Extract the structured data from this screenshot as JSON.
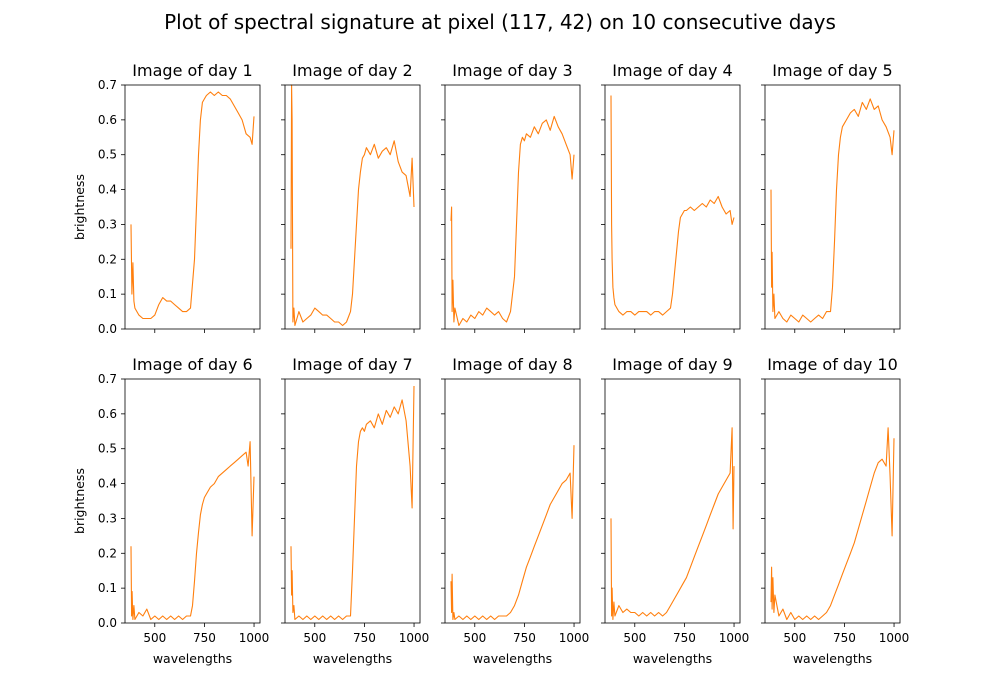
{
  "figure_title": "Plot of spectral signature at pixel (117, 42) on 10 consecutive days",
  "shared_x_label": "wavelengths",
  "shared_y_label": "brightness",
  "line_color": "#ff7f0e",
  "x_ticks": [
    "500",
    "750",
    "1000"
  ],
  "y_ticks": [
    "0.0",
    "0.1",
    "0.2",
    "0.3",
    "0.4",
    "0.5",
    "0.6",
    "0.7"
  ],
  "chart_data": [
    {
      "type": "line",
      "title": "Image of day 1",
      "xlabel": "",
      "ylabel": "brightness",
      "xlim": [
        350,
        1030
      ],
      "ylim": [
        0,
        0.7
      ],
      "series": [
        {
          "x": [
            380,
            385,
            390,
            395,
            400,
            420,
            440,
            460,
            480,
            500,
            520,
            540,
            560,
            580,
            600,
            620,
            640,
            660,
            680,
            700,
            710,
            720,
            730,
            740,
            750,
            760,
            780,
            800,
            820,
            840,
            860,
            880,
            900,
            920,
            940,
            960,
            980,
            990,
            1000
          ],
          "y": [
            0.3,
            0.1,
            0.19,
            0.08,
            0.06,
            0.04,
            0.03,
            0.03,
            0.03,
            0.04,
            0.07,
            0.09,
            0.08,
            0.08,
            0.07,
            0.06,
            0.05,
            0.05,
            0.06,
            0.2,
            0.35,
            0.5,
            0.6,
            0.65,
            0.66,
            0.67,
            0.68,
            0.67,
            0.68,
            0.67,
            0.67,
            0.66,
            0.64,
            0.62,
            0.6,
            0.56,
            0.55,
            0.53,
            0.61
          ]
        }
      ]
    },
    {
      "type": "line",
      "title": "Image of day 2",
      "xlabel": "",
      "ylabel": "",
      "xlim": [
        350,
        1030
      ],
      "ylim": [
        0,
        0.7
      ],
      "series": [
        {
          "x": [
            380,
            383,
            386,
            390,
            395,
            400,
            420,
            440,
            460,
            480,
            500,
            520,
            540,
            560,
            580,
            600,
            620,
            640,
            660,
            680,
            690,
            700,
            710,
            720,
            730,
            740,
            750,
            760,
            780,
            800,
            820,
            840,
            860,
            880,
            900,
            920,
            940,
            960,
            980,
            990,
            1000
          ],
          "y": [
            0.23,
            0.7,
            0.6,
            0.02,
            0.06,
            0.01,
            0.05,
            0.02,
            0.03,
            0.04,
            0.06,
            0.05,
            0.04,
            0.04,
            0.03,
            0.02,
            0.02,
            0.01,
            0.02,
            0.05,
            0.1,
            0.2,
            0.3,
            0.4,
            0.45,
            0.49,
            0.5,
            0.52,
            0.5,
            0.53,
            0.49,
            0.51,
            0.52,
            0.5,
            0.54,
            0.48,
            0.45,
            0.44,
            0.38,
            0.49,
            0.35
          ]
        }
      ]
    },
    {
      "type": "line",
      "title": "Image of day 3",
      "xlabel": "",
      "ylabel": "",
      "xlim": [
        350,
        1030
      ],
      "ylim": [
        0,
        0.7
      ],
      "series": [
        {
          "x": [
            380,
            383,
            386,
            390,
            395,
            400,
            420,
            440,
            460,
            480,
            500,
            520,
            540,
            560,
            580,
            600,
            620,
            640,
            660,
            680,
            700,
            710,
            720,
            730,
            740,
            750,
            760,
            780,
            800,
            820,
            840,
            860,
            880,
            900,
            920,
            940,
            960,
            980,
            990,
            1000
          ],
          "y": [
            0.31,
            0.35,
            0.05,
            0.14,
            0.02,
            0.06,
            0.01,
            0.03,
            0.02,
            0.04,
            0.03,
            0.05,
            0.04,
            0.06,
            0.05,
            0.04,
            0.05,
            0.03,
            0.02,
            0.05,
            0.15,
            0.3,
            0.45,
            0.53,
            0.55,
            0.54,
            0.56,
            0.55,
            0.58,
            0.56,
            0.59,
            0.6,
            0.57,
            0.61,
            0.58,
            0.56,
            0.53,
            0.5,
            0.43,
            0.5
          ]
        }
      ]
    },
    {
      "type": "line",
      "title": "Image of day 4",
      "xlabel": "",
      "ylabel": "",
      "xlim": [
        350,
        1030
      ],
      "ylim": [
        0,
        0.7
      ],
      "series": [
        {
          "x": [
            380,
            383,
            386,
            390,
            395,
            400,
            420,
            440,
            460,
            480,
            500,
            520,
            540,
            560,
            580,
            600,
            620,
            640,
            660,
            680,
            690,
            700,
            710,
            720,
            730,
            740,
            750,
            760,
            780,
            800,
            820,
            840,
            860,
            880,
            900,
            920,
            940,
            960,
            980,
            990,
            1000
          ],
          "y": [
            0.67,
            0.3,
            0.2,
            0.12,
            0.09,
            0.07,
            0.05,
            0.04,
            0.05,
            0.05,
            0.04,
            0.05,
            0.05,
            0.05,
            0.04,
            0.05,
            0.05,
            0.04,
            0.05,
            0.06,
            0.1,
            0.16,
            0.22,
            0.28,
            0.32,
            0.33,
            0.34,
            0.34,
            0.35,
            0.34,
            0.35,
            0.36,
            0.35,
            0.37,
            0.36,
            0.38,
            0.35,
            0.33,
            0.34,
            0.3,
            0.32
          ]
        }
      ]
    },
    {
      "type": "line",
      "title": "Image of day 5",
      "xlabel": "",
      "ylabel": "",
      "xlim": [
        350,
        1030
      ],
      "ylim": [
        0,
        0.7
      ],
      "series": [
        {
          "x": [
            380,
            383,
            386,
            390,
            395,
            400,
            420,
            440,
            460,
            480,
            500,
            520,
            540,
            560,
            580,
            600,
            620,
            640,
            660,
            680,
            690,
            700,
            710,
            720,
            730,
            740,
            750,
            760,
            780,
            800,
            820,
            840,
            860,
            880,
            900,
            920,
            940,
            960,
            980,
            990,
            1000
          ],
          "y": [
            0.4,
            0.12,
            0.22,
            0.05,
            0.1,
            0.03,
            0.05,
            0.03,
            0.02,
            0.04,
            0.03,
            0.02,
            0.04,
            0.03,
            0.02,
            0.03,
            0.04,
            0.03,
            0.05,
            0.05,
            0.12,
            0.25,
            0.4,
            0.5,
            0.55,
            0.58,
            0.59,
            0.6,
            0.62,
            0.63,
            0.61,
            0.65,
            0.63,
            0.66,
            0.63,
            0.64,
            0.6,
            0.58,
            0.55,
            0.5,
            0.57
          ]
        }
      ]
    },
    {
      "type": "line",
      "title": "Image of day 6",
      "xlabel": "wavelengths",
      "ylabel": "brightness",
      "xlim": [
        350,
        1030
      ],
      "ylim": [
        0,
        0.7
      ],
      "series": [
        {
          "x": [
            380,
            383,
            386,
            390,
            395,
            400,
            420,
            440,
            460,
            480,
            500,
            520,
            540,
            560,
            580,
            600,
            620,
            640,
            660,
            680,
            690,
            700,
            710,
            720,
            730,
            740,
            750,
            760,
            780,
            800,
            820,
            840,
            860,
            880,
            900,
            920,
            940,
            960,
            970,
            980,
            990,
            1000
          ],
          "y": [
            0.22,
            0.02,
            0.09,
            0.01,
            0.05,
            0.01,
            0.03,
            0.02,
            0.04,
            0.01,
            0.02,
            0.01,
            0.02,
            0.01,
            0.02,
            0.01,
            0.02,
            0.01,
            0.02,
            0.02,
            0.05,
            0.12,
            0.2,
            0.26,
            0.31,
            0.34,
            0.36,
            0.37,
            0.39,
            0.4,
            0.42,
            0.43,
            0.44,
            0.45,
            0.46,
            0.47,
            0.48,
            0.49,
            0.45,
            0.52,
            0.25,
            0.42
          ]
        }
      ]
    },
    {
      "type": "line",
      "title": "Image of day 7",
      "xlabel": "wavelengths",
      "ylabel": "",
      "xlim": [
        350,
        1030
      ],
      "ylim": [
        0,
        0.7
      ],
      "series": [
        {
          "x": [
            380,
            383,
            386,
            390,
            395,
            400,
            420,
            440,
            460,
            480,
            500,
            520,
            540,
            560,
            580,
            600,
            620,
            640,
            660,
            680,
            690,
            700,
            710,
            720,
            730,
            740,
            750,
            760,
            780,
            800,
            820,
            840,
            860,
            880,
            900,
            920,
            940,
            960,
            980,
            990,
            1000
          ],
          "y": [
            0.22,
            0.08,
            0.15,
            0.03,
            0.05,
            0.01,
            0.02,
            0.01,
            0.02,
            0.01,
            0.02,
            0.01,
            0.02,
            0.01,
            0.02,
            0.01,
            0.02,
            0.01,
            0.02,
            0.02,
            0.15,
            0.3,
            0.45,
            0.52,
            0.55,
            0.56,
            0.55,
            0.57,
            0.58,
            0.56,
            0.6,
            0.57,
            0.61,
            0.59,
            0.62,
            0.6,
            0.64,
            0.58,
            0.45,
            0.33,
            0.68
          ]
        }
      ]
    },
    {
      "type": "line",
      "title": "Image of day 8",
      "xlabel": "wavelengths",
      "ylabel": "",
      "xlim": [
        350,
        1030
      ],
      "ylim": [
        0,
        0.7
      ],
      "series": [
        {
          "x": [
            380,
            383,
            386,
            390,
            395,
            400,
            420,
            440,
            460,
            480,
            500,
            520,
            540,
            560,
            580,
            600,
            620,
            640,
            660,
            680,
            700,
            720,
            740,
            760,
            780,
            800,
            820,
            840,
            860,
            880,
            900,
            920,
            940,
            960,
            980,
            990,
            1000
          ],
          "y": [
            0.12,
            0.03,
            0.14,
            0.01,
            0.03,
            0.01,
            0.02,
            0.01,
            0.02,
            0.01,
            0.02,
            0.01,
            0.02,
            0.01,
            0.02,
            0.01,
            0.02,
            0.02,
            0.02,
            0.03,
            0.05,
            0.08,
            0.12,
            0.16,
            0.19,
            0.22,
            0.25,
            0.28,
            0.31,
            0.34,
            0.36,
            0.38,
            0.4,
            0.41,
            0.43,
            0.3,
            0.51
          ]
        }
      ]
    },
    {
      "type": "line",
      "title": "Image of day 9",
      "xlabel": "wavelengths",
      "ylabel": "",
      "xlim": [
        350,
        1030
      ],
      "ylim": [
        0,
        0.7
      ],
      "series": [
        {
          "x": [
            380,
            383,
            386,
            390,
            395,
            400,
            420,
            440,
            460,
            480,
            500,
            520,
            540,
            560,
            580,
            600,
            620,
            640,
            660,
            680,
            700,
            720,
            740,
            760,
            780,
            800,
            820,
            840,
            860,
            880,
            900,
            920,
            940,
            960,
            980,
            990,
            995,
            1000
          ],
          "y": [
            0.3,
            0.02,
            0.1,
            0.01,
            0.06,
            0.02,
            0.05,
            0.03,
            0.04,
            0.03,
            0.03,
            0.02,
            0.03,
            0.02,
            0.03,
            0.02,
            0.03,
            0.02,
            0.03,
            0.05,
            0.07,
            0.09,
            0.11,
            0.13,
            0.16,
            0.19,
            0.22,
            0.25,
            0.28,
            0.31,
            0.34,
            0.37,
            0.39,
            0.41,
            0.43,
            0.56,
            0.27,
            0.45
          ]
        }
      ]
    },
    {
      "type": "line",
      "title": "Image of day 10",
      "xlabel": "wavelengths",
      "ylabel": "",
      "xlim": [
        350,
        1030
      ],
      "ylim": [
        0,
        0.7
      ],
      "series": [
        {
          "x": [
            380,
            383,
            386,
            390,
            395,
            400,
            420,
            440,
            460,
            480,
            500,
            520,
            540,
            560,
            580,
            600,
            620,
            640,
            660,
            680,
            700,
            720,
            740,
            760,
            780,
            800,
            820,
            840,
            860,
            880,
            900,
            920,
            940,
            960,
            970,
            980,
            990,
            1000
          ],
          "y": [
            0.06,
            0.16,
            0.04,
            0.13,
            0.03,
            0.08,
            0.02,
            0.04,
            0.01,
            0.03,
            0.01,
            0.02,
            0.01,
            0.02,
            0.01,
            0.02,
            0.01,
            0.02,
            0.03,
            0.05,
            0.08,
            0.11,
            0.14,
            0.17,
            0.2,
            0.23,
            0.27,
            0.31,
            0.35,
            0.39,
            0.43,
            0.46,
            0.47,
            0.45,
            0.56,
            0.42,
            0.25,
            0.53
          ]
        }
      ]
    }
  ]
}
